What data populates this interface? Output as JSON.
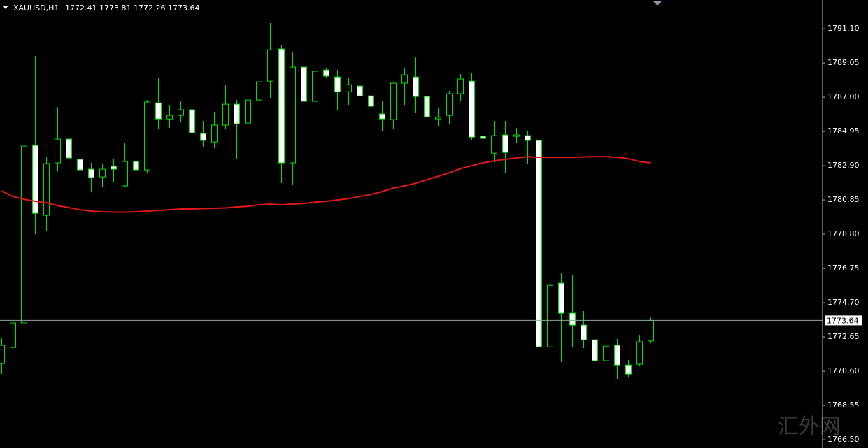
{
  "chart_data": {
    "type": "candlestick",
    "title": "XAUUSD,H1",
    "watermark": "汇外网",
    "open": [
      1771.06,
      1772.02,
      1773.49,
      1784.11,
      1779.93,
      1783.07,
      1784.49,
      1783.28,
      1782.69,
      1782.23,
      1782.86,
      1781.69,
      1783.15,
      1782.65,
      1786.66,
      1785.7,
      1785.91,
      1786.25,
      1784.82,
      1784.32,
      1785.33,
      1786.58,
      1785.45,
      1786.83,
      1787.96,
      1789.89,
      1783.07,
      1788.8,
      1786.75,
      1788.63,
      1788.21,
      1787.33,
      1787.67,
      1787.08,
      1786.0,
      1785.66,
      1787.84,
      1788.21,
      1787.04,
      1785.7,
      1785.91,
      1787.21,
      1787.96,
      1784.66,
      1783.65,
      1784.74,
      1784.66,
      1784.7,
      1784.41,
      1772.06,
      1775.87,
      1774.07,
      1773.36,
      1772.48,
      1771.23,
      1772.15,
      1770.97,
      1771.02,
      1772.41
    ],
    "high": [
      1772.56,
      1773.74,
      1784.45,
      1789.47,
      1783.4,
      1786.41,
      1785.08,
      1784.66,
      1783.07,
      1782.98,
      1783.28,
      1784.24,
      1783.53,
      1786.83,
      1788.17,
      1786.54,
      1786.75,
      1786.96,
      1785.58,
      1786.12,
      1787.71,
      1786.83,
      1787.08,
      1788.21,
      1791.44,
      1790.1,
      1789.68,
      1789.38,
      1790.1,
      1788.72,
      1788.63,
      1788.13,
      1788.0,
      1787.38,
      1786.75,
      1787.88,
      1788.72,
      1789.38,
      1787.38,
      1786.33,
      1787.38,
      1788.38,
      1788.42,
      1785.08,
      1785.58,
      1785.58,
      1785.16,
      1784.99,
      1785.49,
      1778.17,
      1776.5,
      1776.37,
      1774.2,
      1773.15,
      1773.15,
      1772.52,
      1771.27,
      1772.73,
      1773.81
    ],
    "low": [
      1770.43,
      1771.56,
      1772.15,
      1778.8,
      1779.01,
      1782.56,
      1782.77,
      1782.36,
      1781.31,
      1781.6,
      1781.94,
      1781.6,
      1782.36,
      1782.44,
      1785.08,
      1785.16,
      1785.49,
      1784.32,
      1784.03,
      1783.95,
      1785.08,
      1783.28,
      1784.32,
      1786.12,
      1786.96,
      1781.85,
      1781.73,
      1785.37,
      1785.79,
      1788.13,
      1786.2,
      1786.54,
      1786.2,
      1786.04,
      1784.95,
      1785.08,
      1786.54,
      1786.04,
      1785.49,
      1785.28,
      1785.37,
      1786.75,
      1784.45,
      1781.85,
      1783.11,
      1782.44,
      1784.24,
      1782.98,
      1771.48,
      1766.37,
      1771.14,
      1772.02,
      1771.98,
      1771.14,
      1770.93,
      1770.14,
      1770.22,
      1770.89,
      1772.26
    ],
    "close": [
      1772.15,
      1773.49,
      1784.07,
      1780.05,
      1783.03,
      1784.49,
      1783.36,
      1782.65,
      1782.19,
      1782.69,
      1782.69,
      1783.15,
      1782.65,
      1786.71,
      1785.7,
      1785.91,
      1786.25,
      1784.87,
      1784.41,
      1785.33,
      1786.58,
      1785.41,
      1786.83,
      1787.92,
      1789.84,
      1783.07,
      1788.8,
      1786.75,
      1788.55,
      1788.26,
      1787.33,
      1787.75,
      1787.08,
      1786.46,
      1785.7,
      1787.84,
      1788.34,
      1787.04,
      1785.83,
      1785.79,
      1787.21,
      1788.09,
      1784.61,
      1784.53,
      1784.7,
      1783.69,
      1784.74,
      1784.41,
      1772.06,
      1775.74,
      1774.07,
      1773.36,
      1772.48,
      1771.23,
      1772.1,
      1770.97,
      1770.43,
      1772.36,
      1773.64
    ],
    "ma": {
      "color": "#e01818",
      "values": [
        1781.39,
        1781.06,
        1780.89,
        1780.77,
        1780.68,
        1780.51,
        1780.39,
        1780.26,
        1780.18,
        1780.14,
        1780.12,
        1780.12,
        1780.14,
        1780.18,
        1780.22,
        1780.26,
        1780.31,
        1780.31,
        1780.33,
        1780.35,
        1780.37,
        1780.43,
        1780.47,
        1780.56,
        1780.6,
        1780.56,
        1780.6,
        1780.64,
        1780.72,
        1780.77,
        1780.85,
        1780.93,
        1781.06,
        1781.18,
        1781.35,
        1781.56,
        1781.69,
        1781.85,
        1782.06,
        1782.27,
        1782.48,
        1782.73,
        1782.9,
        1783.07,
        1783.19,
        1783.28,
        1783.36,
        1783.44,
        1783.4,
        1783.4,
        1783.4,
        1783.4,
        1783.42,
        1783.44,
        1783.44,
        1783.4,
        1783.32,
        1783.15,
        1783.07
      ]
    },
    "colors": {
      "wick": "#00e000",
      "up_body": "#000000",
      "down_body": "#ffffff",
      "price_line": "#8fa89a",
      "axis": "#c0c0c0"
    },
    "ylim": [
      1766.0,
      1792.82
    ],
    "yticks": [
      {
        "value": 1791.1,
        "label": "1791.10"
      },
      {
        "value": 1789.05,
        "label": "1789.05"
      },
      {
        "value": 1787.0,
        "label": "1787.00"
      },
      {
        "value": 1784.95,
        "label": "1784.95"
      },
      {
        "value": 1782.9,
        "label": "1782.90"
      },
      {
        "value": 1780.85,
        "label": "1780.85"
      },
      {
        "value": 1778.8,
        "label": "1778.80"
      },
      {
        "value": 1776.75,
        "label": "1776.75"
      },
      {
        "value": 1774.7,
        "label": "1774.70"
      },
      {
        "value": 1772.65,
        "label": "1772.65"
      },
      {
        "value": 1770.6,
        "label": "1770.60"
      },
      {
        "value": 1768.55,
        "label": "1768.55"
      },
      {
        "value": 1766.5,
        "label": "1766.50"
      }
    ]
  }
}
